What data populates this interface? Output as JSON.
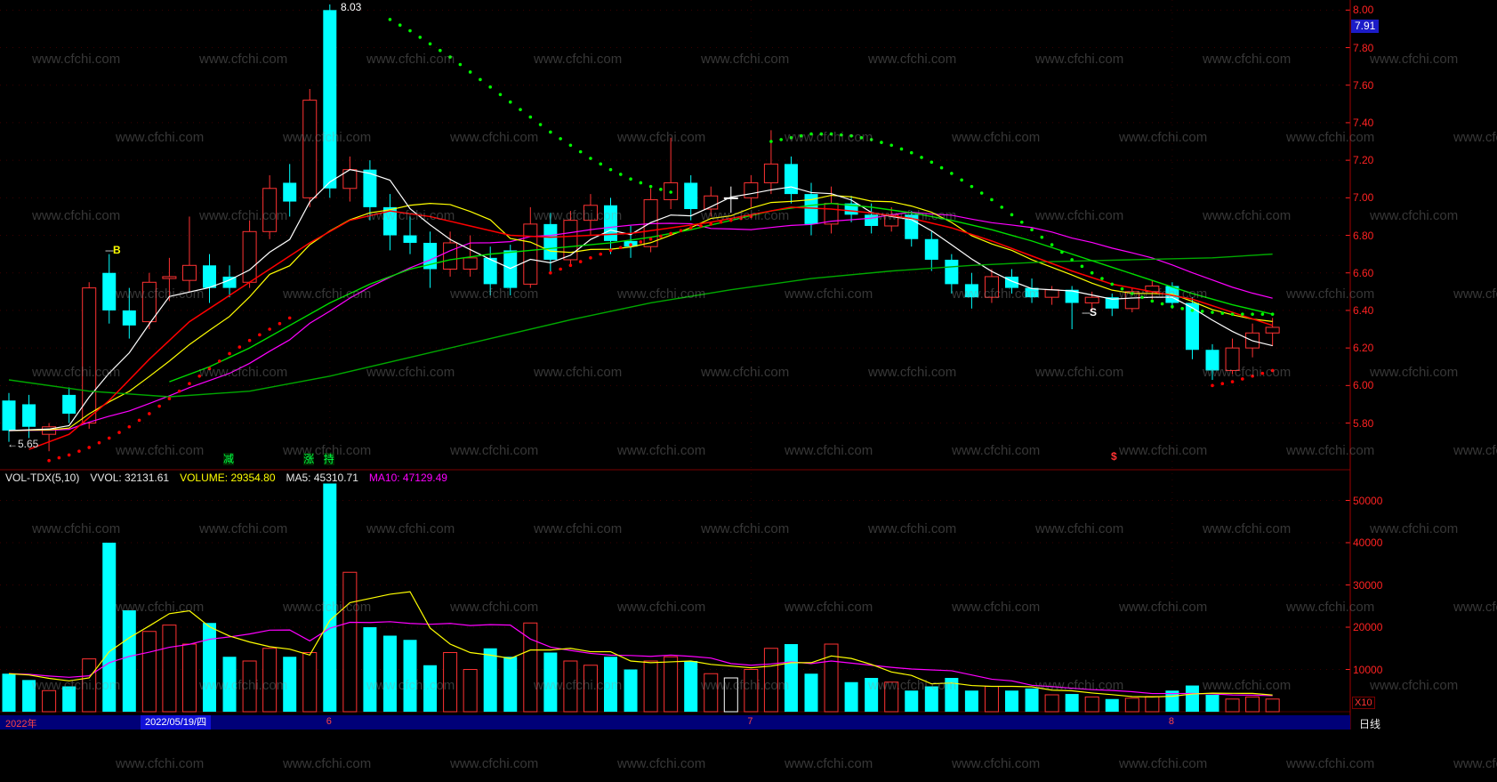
{
  "watermark": {
    "text": "www.cfchi.com"
  },
  "colors": {
    "up": "#ff3232",
    "down": "#00ffff",
    "doji": "#ffffff",
    "ma_white": "#ffffff",
    "ma_yellow": "#ffff00",
    "ma_magenta": "#ff00ff",
    "ma_green_slow": "#00a800",
    "ma_green_fast": "#00dd00",
    "trend_red": "#ff0000",
    "sar_red": "#ff0000",
    "sar_green": "#00ff00",
    "axis_text": "#ff2222",
    "grid": "#3c0000",
    "separator": "#7a0000",
    "badge_bg": "#1c1cc8",
    "bottom_bar_bg": "#000078",
    "date_box_bg": "#1111d8"
  },
  "price_pane": {
    "axis_labels": [
      "8.00",
      "7.80",
      "7.60",
      "7.40",
      "7.20",
      "7.00",
      "6.80",
      "6.60",
      "6.40",
      "6.20",
      "6.00",
      "5.80"
    ],
    "price_badge": "7.91",
    "annotations": {
      "peak_label": "8.03",
      "low_label": "←5.65",
      "buy_dashes": "---",
      "buy_letter": "B",
      "sell_dashes": "---",
      "sell_letter": "S",
      "dollar_marker": "$",
      "event_flags": [
        {
          "text": "减",
          "bar": 11
        },
        {
          "text": "涨",
          "bar": 15
        },
        {
          "text": "持",
          "bar": 16
        }
      ]
    }
  },
  "volume_pane": {
    "indicator": {
      "name": "VOL-TDX(5,10)",
      "vvol": "VVOL: 32131.61",
      "volume": "VOLUME: 29354.80",
      "ma5": "MA5: 45310.71",
      "ma10": "MA10: 47129.49"
    },
    "axis_labels": [
      "50000",
      "40000",
      "30000",
      "20000",
      "10000"
    ],
    "unit_label": "X10"
  },
  "timeline": {
    "year_label": "2022年",
    "selected_date": "2022/05/19/四",
    "month_markers": [
      {
        "label": "6",
        "bar": 16
      },
      {
        "label": "7",
        "bar": 37
      },
      {
        "label": "8",
        "bar": 58
      }
    ],
    "period_label": "日线"
  },
  "chart_data": {
    "type": "candlestick",
    "title": "",
    "price_ylim": [
      5.65,
      8.03
    ],
    "volume_ylim": [
      0,
      57500
    ],
    "volume_ticks": [
      10000,
      20000,
      30000,
      40000,
      50000
    ],
    "ma_periods": {
      "white": 5,
      "yellow": 10,
      "magenta": 20
    },
    "volume_ma_periods": {
      "yellow": 5,
      "magenta": 10
    },
    "bars": [
      [
        5.92,
        5.96,
        5.7,
        5.76,
        9000
      ],
      [
        5.9,
        5.95,
        5.72,
        5.78,
        7500
      ],
      [
        5.74,
        5.8,
        5.65,
        5.78,
        5000
      ],
      [
        5.95,
        5.99,
        5.8,
        5.85,
        6000
      ],
      [
        5.8,
        6.55,
        5.77,
        6.52,
        12500
      ],
      [
        6.6,
        6.7,
        6.33,
        6.4,
        40000
      ],
      [
        6.4,
        6.52,
        6.25,
        6.32,
        24000
      ],
      [
        6.34,
        6.6,
        6.3,
        6.55,
        19000
      ],
      [
        6.57,
        6.68,
        6.45,
        6.58,
        20500
      ],
      [
        6.56,
        6.9,
        6.5,
        6.64,
        16000
      ],
      [
        6.64,
        6.7,
        6.44,
        6.52,
        21000
      ],
      [
        6.58,
        6.64,
        6.47,
        6.52,
        13000
      ],
      [
        6.55,
        6.88,
        6.52,
        6.82,
        12000
      ],
      [
        6.82,
        7.12,
        6.78,
        7.05,
        15000
      ],
      [
        7.08,
        7.18,
        6.9,
        6.98,
        13000
      ],
      [
        7.0,
        7.58,
        6.95,
        7.52,
        14000
      ],
      [
        8.0,
        8.03,
        7.0,
        7.05,
        54000
      ],
      [
        7.05,
        7.22,
        6.98,
        7.15,
        33000
      ],
      [
        7.15,
        7.2,
        6.88,
        6.95,
        20000
      ],
      [
        6.95,
        7.02,
        6.72,
        6.8,
        18000
      ],
      [
        6.8,
        6.9,
        6.7,
        6.76,
        17000
      ],
      [
        6.76,
        6.82,
        6.52,
        6.62,
        11000
      ],
      [
        6.62,
        6.82,
        6.58,
        6.76,
        14000
      ],
      [
        6.62,
        6.8,
        6.58,
        6.68,
        10000
      ],
      [
        6.68,
        6.74,
        6.48,
        6.54,
        15000
      ],
      [
        6.72,
        6.75,
        6.48,
        6.52,
        13000
      ],
      [
        6.54,
        6.95,
        6.52,
        6.86,
        21000
      ],
      [
        6.86,
        6.92,
        6.6,
        6.67,
        14000
      ],
      [
        6.67,
        6.93,
        6.64,
        6.88,
        12000
      ],
      [
        6.88,
        7.02,
        6.8,
        6.96,
        11000
      ],
      [
        6.96,
        7.0,
        6.7,
        6.77,
        13000
      ],
      [
        6.77,
        6.85,
        6.68,
        6.74,
        10000
      ],
      [
        6.74,
        7.05,
        6.71,
        6.99,
        12000
      ],
      [
        6.99,
        7.32,
        6.94,
        7.08,
        13000
      ],
      [
        7.08,
        7.12,
        6.88,
        6.94,
        12000
      ],
      [
        6.94,
        7.06,
        6.9,
        7.01,
        9000
      ],
      [
        7.0,
        7.06,
        6.92,
        7.0,
        8000
      ],
      [
        7.0,
        7.12,
        6.95,
        7.08,
        10000
      ],
      [
        7.08,
        7.36,
        7.02,
        7.18,
        15000
      ],
      [
        7.18,
        7.22,
        6.97,
        7.02,
        16000
      ],
      [
        7.02,
        7.08,
        6.8,
        6.86,
        9000
      ],
      [
        6.86,
        7.06,
        6.81,
        6.97,
        16000
      ],
      [
        6.97,
        7.01,
        6.87,
        6.91,
        7000
      ],
      [
        6.91,
        6.97,
        6.81,
        6.85,
        8000
      ],
      [
        6.85,
        6.95,
        6.82,
        6.91,
        7000
      ],
      [
        6.91,
        6.93,
        6.74,
        6.78,
        5000
      ],
      [
        6.78,
        6.82,
        6.61,
        6.67,
        6000
      ],
      [
        6.67,
        6.7,
        6.49,
        6.54,
        8000
      ],
      [
        6.54,
        6.6,
        6.41,
        6.47,
        5000
      ],
      [
        6.47,
        6.62,
        6.44,
        6.58,
        6000
      ],
      [
        6.58,
        6.62,
        6.49,
        6.52,
        5000
      ],
      [
        6.52,
        6.57,
        6.44,
        6.47,
        5500
      ],
      [
        6.47,
        6.53,
        6.43,
        6.51,
        4000
      ],
      [
        6.51,
        6.53,
        6.3,
        6.44,
        4200
      ],
      [
        6.44,
        6.5,
        6.4,
        6.47,
        3500
      ],
      [
        6.47,
        6.49,
        6.37,
        6.41,
        3000
      ],
      [
        6.41,
        6.52,
        6.39,
        6.5,
        3200
      ],
      [
        6.5,
        6.56,
        6.46,
        6.53,
        3600
      ],
      [
        6.53,
        6.55,
        6.41,
        6.44,
        5000
      ],
      [
        6.44,
        6.47,
        6.14,
        6.19,
        6200
      ],
      [
        6.19,
        6.22,
        6.03,
        6.08,
        4000
      ],
      [
        6.08,
        6.25,
        6.06,
        6.2,
        3000
      ],
      [
        6.2,
        6.33,
        6.15,
        6.28,
        3500
      ],
      [
        6.28,
        6.36,
        6.21,
        6.31,
        3000
      ]
    ],
    "overlays": {
      "red_line": [
        [
          1,
          5.66
        ],
        [
          3,
          5.74
        ],
        [
          5,
          5.92
        ],
        [
          7,
          6.14
        ],
        [
          9,
          6.34
        ],
        [
          11,
          6.48
        ],
        [
          13,
          6.62
        ],
        [
          15,
          6.76
        ],
        [
          17,
          6.88
        ],
        [
          19,
          6.93
        ],
        [
          21,
          6.9
        ],
        [
          23,
          6.85
        ],
        [
          25,
          6.8
        ],
        [
          27,
          6.79
        ],
        [
          29,
          6.8
        ],
        [
          31,
          6.81
        ],
        [
          33,
          6.84
        ],
        [
          35,
          6.87
        ],
        [
          37,
          6.91
        ],
        [
          39,
          6.95
        ],
        [
          41,
          6.94
        ],
        [
          43,
          6.92
        ],
        [
          45,
          6.89
        ],
        [
          47,
          6.84
        ],
        [
          49,
          6.77
        ],
        [
          51,
          6.69
        ],
        [
          53,
          6.61
        ],
        [
          55,
          6.54
        ],
        [
          57,
          6.5
        ],
        [
          59,
          6.46
        ],
        [
          61,
          6.39
        ],
        [
          63,
          6.32
        ]
      ],
      "green_slow_line": [
        [
          0,
          6.03
        ],
        [
          4,
          5.97
        ],
        [
          8,
          5.94
        ],
        [
          12,
          5.97
        ],
        [
          16,
          6.05
        ],
        [
          20,
          6.15
        ],
        [
          24,
          6.25
        ],
        [
          28,
          6.35
        ],
        [
          32,
          6.44
        ],
        [
          36,
          6.51
        ],
        [
          40,
          6.57
        ],
        [
          44,
          6.61
        ],
        [
          48,
          6.64
        ],
        [
          52,
          6.66
        ],
        [
          56,
          6.67
        ],
        [
          60,
          6.68
        ],
        [
          63,
          6.7
        ]
      ],
      "green_fast_line": [
        [
          8,
          6.02
        ],
        [
          10,
          6.1
        ],
        [
          12,
          6.2
        ],
        [
          14,
          6.32
        ],
        [
          16,
          6.44
        ],
        [
          18,
          6.54
        ],
        [
          20,
          6.62
        ],
        [
          22,
          6.67
        ],
        [
          24,
          6.7
        ],
        [
          26,
          6.72
        ],
        [
          28,
          6.74
        ],
        [
          30,
          6.76
        ],
        [
          32,
          6.79
        ],
        [
          34,
          6.83
        ],
        [
          36,
          6.88
        ],
        [
          38,
          6.93
        ],
        [
          40,
          6.96
        ],
        [
          41,
          6.97
        ],
        [
          43,
          6.95
        ],
        [
          45,
          6.92
        ],
        [
          47,
          6.88
        ],
        [
          49,
          6.83
        ],
        [
          51,
          6.77
        ],
        [
          53,
          6.7
        ],
        [
          55,
          6.63
        ],
        [
          57,
          6.56
        ],
        [
          59,
          6.49
        ],
        [
          61,
          6.43
        ],
        [
          63,
          6.38
        ]
      ],
      "sar": [
        {
          "color": "red",
          "points": [
            [
              2,
              5.6
            ],
            [
              3,
              5.63
            ],
            [
              4,
              5.67
            ],
            [
              5,
              5.72
            ],
            [
              6,
              5.78
            ],
            [
              7,
              5.85
            ],
            [
              8,
              5.93
            ],
            [
              9,
              6.01
            ],
            [
              10,
              6.09
            ],
            [
              11,
              6.17
            ],
            [
              12,
              6.24
            ],
            [
              13,
              6.3
            ],
            [
              14,
              6.36
            ]
          ]
        },
        {
          "color": "green",
          "points": [
            [
              19,
              7.95
            ],
            [
              20,
              7.89
            ],
            [
              21,
              7.82
            ],
            [
              22,
              7.75
            ],
            [
              23,
              7.67
            ],
            [
              24,
              7.59
            ],
            [
              25,
              7.51
            ],
            [
              26,
              7.43
            ],
            [
              27,
              7.35
            ],
            [
              28,
              7.28
            ],
            [
              29,
              7.21
            ],
            [
              30,
              7.15
            ],
            [
              31,
              7.1
            ],
            [
              32,
              7.06
            ],
            [
              33,
              7.03
            ]
          ]
        },
        {
          "color": "red",
          "points": [
            [
              27,
              6.6
            ],
            [
              28,
              6.64
            ],
            [
              29,
              6.68
            ],
            [
              30,
              6.72
            ],
            [
              31,
              6.75
            ],
            [
              32,
              6.78
            ],
            [
              33,
              6.81
            ],
            [
              34,
              6.84
            ],
            [
              35,
              6.86
            ],
            [
              36,
              6.88
            ],
            [
              37,
              6.9
            ]
          ]
        },
        {
          "color": "green",
          "points": [
            [
              38,
              7.3
            ],
            [
              39,
              7.32
            ],
            [
              40,
              7.34
            ],
            [
              41,
              7.34
            ],
            [
              42,
              7.33
            ],
            [
              43,
              7.31
            ],
            [
              44,
              7.28
            ],
            [
              45,
              7.24
            ],
            [
              46,
              7.19
            ],
            [
              47,
              7.13
            ],
            [
              48,
              7.06
            ],
            [
              49,
              6.99
            ],
            [
              50,
              6.91
            ],
            [
              51,
              6.83
            ],
            [
              52,
              6.75
            ],
            [
              53,
              6.67
            ],
            [
              54,
              6.6
            ],
            [
              55,
              6.54
            ],
            [
              56,
              6.49
            ],
            [
              57,
              6.45
            ],
            [
              58,
              6.42
            ],
            [
              59,
              6.4
            ],
            [
              60,
              6.39
            ],
            [
              61,
              6.38
            ],
            [
              62,
              6.38
            ],
            [
              63,
              6.38
            ]
          ]
        },
        {
          "color": "red",
          "points": [
            [
              60,
              6.0
            ],
            [
              61,
              6.02
            ],
            [
              62,
              6.05
            ],
            [
              63,
              6.08
            ]
          ]
        }
      ]
    }
  }
}
